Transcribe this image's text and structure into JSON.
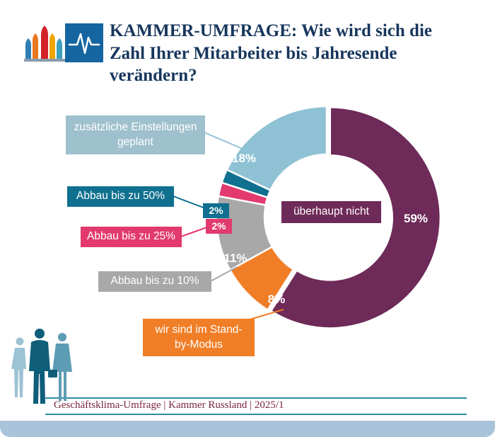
{
  "header": {
    "title_lines": [
      "KAMMER-UMFRAGE: Wie wird sich die",
      "Zahl Ihrer Mitarbeiter bis Jahresende",
      "verändern?"
    ],
    "title_color": "#17365d"
  },
  "logo": {
    "left_icon": "st-basils-cathedral",
    "right_icon": "pulse-line",
    "pulse_bg_color": "#1565a0"
  },
  "chart_data": {
    "type": "pie",
    "subtype": "donut",
    "title": "KAMMER-UMFRAGE: Wie wird sich die Zahl Ihrer Mitarbeiter bis Jahresende verändern?",
    "unit": "%",
    "direction": "clockwise",
    "start_angle_deg": 0,
    "legend_position": "callout-labels",
    "segments": [
      {
        "label": "überhaupt nicht",
        "value": 59,
        "pct_label": "59%",
        "color": "#6e2a58",
        "box_color": "#6e2a58"
      },
      {
        "label": "wir sind im Stand-by-Modus",
        "value": 8,
        "pct_label": "8%",
        "color": "#f07e26",
        "box_color": "#f07e26"
      },
      {
        "label": "Abbau bis zu 10%",
        "value": 11,
        "pct_label": "11%",
        "color": "#a8a8a8",
        "box_color": "#a8a8a8"
      },
      {
        "label": "Abbau bis zu 25%",
        "value": 2,
        "pct_label": "2%",
        "color": "#e23a6e",
        "box_color": "#e23a6e"
      },
      {
        "label": "Abbau bis zu 50%",
        "value": 2,
        "pct_label": "2%",
        "color": "#10708f",
        "box_color": "#10708f"
      },
      {
        "label": "zusätzliche Einstellungen geplant",
        "value": 18,
        "pct_label": "18%",
        "color": "#8fc1d4",
        "box_color": "#9fc0cd"
      }
    ]
  },
  "footer": {
    "text": "Geschäftsklima-Umfrage | Kammer Russland | 2025/1",
    "text_color": "#7b2742",
    "line_color": "#2e8ca3",
    "bottom_bar_color": "#a9c3db"
  }
}
